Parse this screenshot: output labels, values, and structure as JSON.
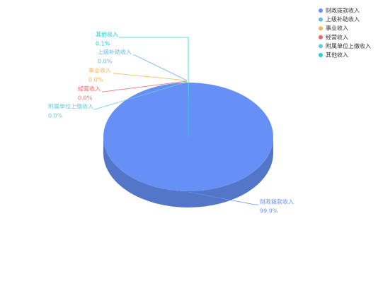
{
  "chart_data": {
    "type": "pie",
    "categories": [
      "财政拨款收入",
      "上级补助收入",
      "事业收入",
      "经营收入",
      "附属单位上缴收入",
      "其他收入"
    ],
    "values": [
      99.9,
      0.0,
      0.0,
      0.0,
      0.0,
      0.1
    ],
    "value_labels": [
      "99.9%",
      "0.0%",
      "0.0%",
      "0.0%",
      "0.0%",
      "0.1%"
    ],
    "colors": [
      "#6690f5",
      "#6ab7e8",
      "#f5b256",
      "#ee6a6a",
      "#66cbd6",
      "#1dd4d4"
    ],
    "legend": "top-right"
  }
}
